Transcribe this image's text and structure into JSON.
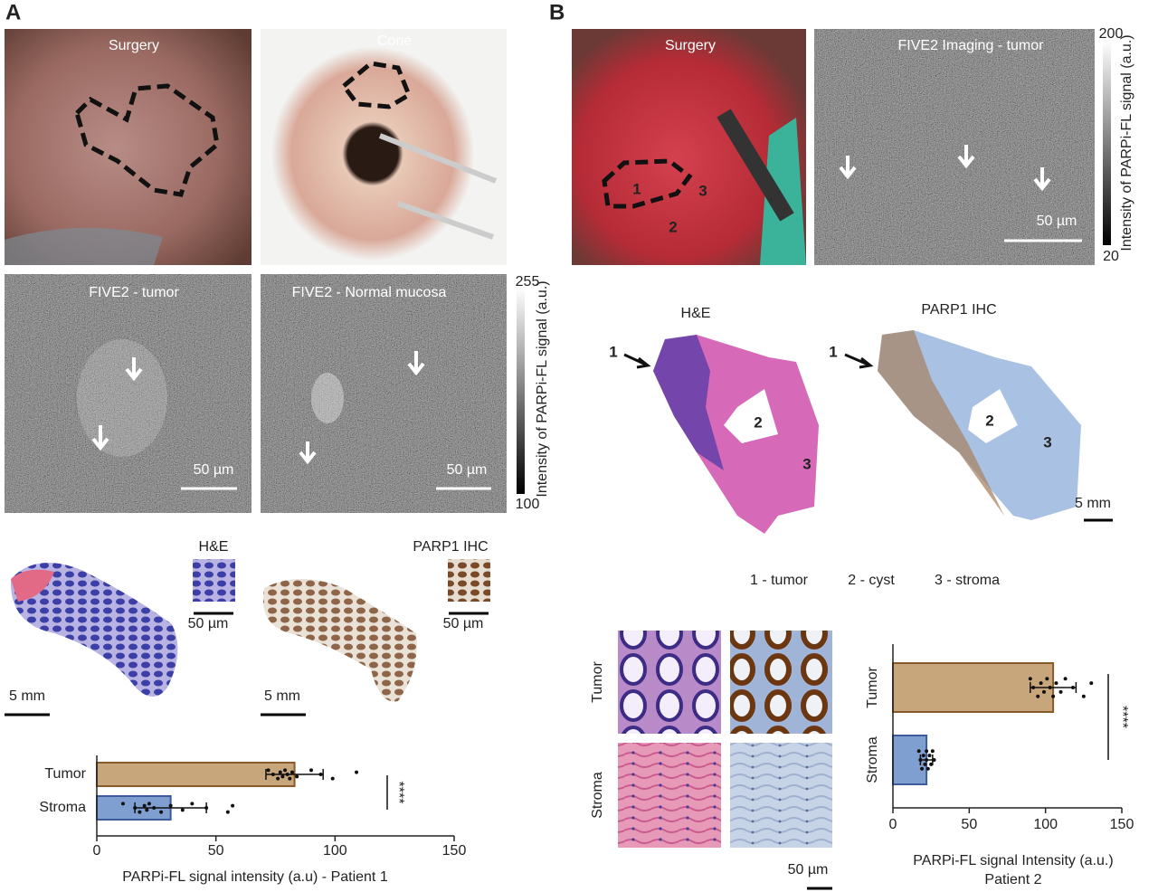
{
  "panel_a": {
    "letter": "A",
    "photos": [
      "Surgery",
      "Cone"
    ],
    "fluorescence": [
      "FIVE2 - tumor",
      "FIVE2 - Normal mucosa"
    ],
    "fluorescence_scale": "50 µm",
    "colorbar": {
      "max": 255,
      "min": 100,
      "label": "Intensity of PARPi-FL signal (a.u.)"
    },
    "slides": [
      "H&E",
      "PARP1 IHC"
    ],
    "inset_scale": "50 µm",
    "slide_scale": "5 mm"
  },
  "panel_b": {
    "letter": "B",
    "photos": [
      "Surgery",
      "FIVE2 Imaging  - tumor"
    ],
    "region_numbers": [
      "1",
      "2",
      "3"
    ],
    "fluorescence_scale": "50 µm",
    "colorbar": {
      "max": 200,
      "min": 20,
      "label": "Intensity of PARPi-FL signal (a.u.)"
    },
    "slides": [
      "H&E",
      "PARP1 IHC"
    ],
    "slide_scale": "5 mm",
    "legend": [
      "1 - tumor",
      "2 - cyst",
      "3 - stroma"
    ],
    "micrograph_rows": [
      "Tumor",
      "Stroma"
    ],
    "micrograph_scale": "50 µm"
  },
  "chart_data": [
    {
      "type": "bar",
      "orientation": "horizontal",
      "categories": [
        "Tumor",
        "Stroma"
      ],
      "values": [
        83,
        31
      ],
      "errors": [
        12,
        15
      ],
      "points": [
        [
          72,
          74,
          76,
          77,
          78,
          79,
          80,
          81,
          82,
          84,
          90,
          94,
          99,
          109
        ],
        [
          11,
          16,
          18,
          20,
          21,
          22,
          24,
          27,
          31,
          36,
          40,
          46,
          55,
          57
        ]
      ],
      "colors": [
        "#c8a67c",
        "#7f9fd0"
      ],
      "edge_colors": [
        "#8a5a2a",
        "#3b5b9a"
      ],
      "xlim": [
        0,
        150
      ],
      "xticks": [
        0,
        50,
        100,
        150
      ],
      "xlabel": "PARPi-FL signal intensity (a.u) - Patient 1",
      "significance": "****"
    },
    {
      "type": "bar",
      "orientation": "horizontal",
      "categories": [
        "Tumor",
        "Stroma"
      ],
      "values": [
        105,
        22
      ],
      "errors": [
        15,
        4
      ],
      "points": [
        [
          90,
          92,
          95,
          97,
          99,
          101,
          103,
          105,
          107,
          110,
          113,
          118,
          125,
          130
        ],
        [
          17,
          18,
          19,
          20,
          21,
          22,
          22,
          23,
          24,
          25,
          26,
          27
        ]
      ],
      "colors": [
        "#c8a67c",
        "#7f9fd0"
      ],
      "edge_colors": [
        "#8a5a2a",
        "#3b5b9a"
      ],
      "xlim": [
        0,
        150
      ],
      "xticks": [
        0,
        50,
        100,
        150
      ],
      "xlabel": [
        "PARPi-FL signal Intensity (a.u.)",
        "Patient 2"
      ],
      "significance": "****"
    }
  ]
}
